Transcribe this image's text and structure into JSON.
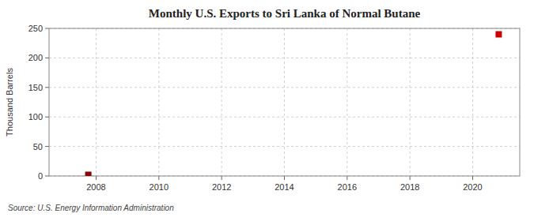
{
  "chart_data": {
    "type": "scatter",
    "title": "Monthly U.S. Exports to Sri Lanka of Normal Butane",
    "ylabel": "Thousand Barrels",
    "source": "Source: U.S. Energy Information Administration",
    "x": [
      2007.75,
      2020.83
    ],
    "values": [
      2,
      240
    ],
    "colors": [
      "#8b0000",
      "#cc0000"
    ],
    "marker": "square",
    "xlim": [
      2006.5,
      2021.5
    ],
    "ylim": [
      0,
      250
    ],
    "xticks": [
      2008,
      2010,
      2012,
      2014,
      2016,
      2018,
      2020
    ],
    "yticks": [
      0,
      50,
      100,
      150,
      200,
      250
    ],
    "grid": true
  }
}
